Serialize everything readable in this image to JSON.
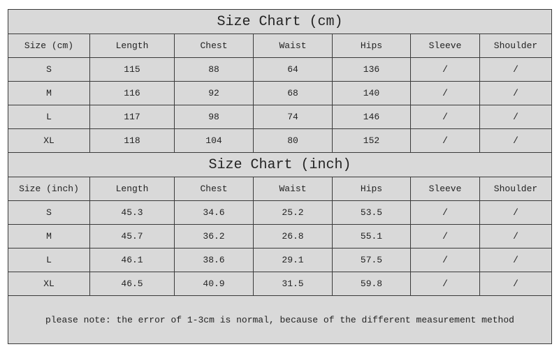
{
  "tables": [
    {
      "title": "Size Chart (cm)",
      "headers": [
        "Size (cm)",
        "Length",
        "Chest",
        "Waist",
        "Hips",
        "Sleeve",
        "Shoulder"
      ],
      "rows": [
        [
          "S",
          "115",
          "88",
          "64",
          "136",
          "/",
          "/"
        ],
        [
          "M",
          "116",
          "92",
          "68",
          "140",
          "/",
          "/"
        ],
        [
          "L",
          "117",
          "98",
          "74",
          "146",
          "/",
          "/"
        ],
        [
          "XL",
          "118",
          "104",
          "80",
          "152",
          "/",
          "/"
        ]
      ]
    },
    {
      "title": "Size Chart (inch)",
      "headers": [
        "Size (inch)",
        "Length",
        "Chest",
        "Waist",
        "Hips",
        "Sleeve",
        "Shoulder"
      ],
      "rows": [
        [
          "S",
          "45.3",
          "34.6",
          "25.2",
          "53.5",
          "/",
          "/"
        ],
        [
          "M",
          "45.7",
          "36.2",
          "26.8",
          "55.1",
          "/",
          "/"
        ],
        [
          "L",
          "46.1",
          "38.6",
          "29.1",
          "57.5",
          "/",
          "/"
        ],
        [
          "XL",
          "46.5",
          "40.9",
          "31.5",
          "59.8",
          "/",
          "/"
        ]
      ]
    }
  ],
  "note": "please note: the error of 1-3cm is normal, because of the different measurement method",
  "colors": {
    "cell_fill": "#d9d9d9",
    "border": "#3a3a3a"
  }
}
